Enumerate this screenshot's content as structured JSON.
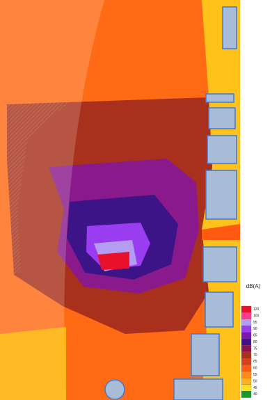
{
  "legend": {
    "title": "dB(A)",
    "items": [
      {
        "label": "120",
        "color": "#e8102a"
      },
      {
        "label": "100",
        "color": "#ff3a8a"
      },
      {
        "label": "95",
        "color": "#b49cf0"
      },
      {
        "label": "90",
        "color": "#9a3cf0"
      },
      {
        "label": "85",
        "color": "#7a18b0"
      },
      {
        "label": "80",
        "color": "#3c1488"
      },
      {
        "label": "75",
        "color": "#8a1050"
      },
      {
        "label": "70",
        "color": "#a8301c"
      },
      {
        "label": "65",
        "color": "#d8401a"
      },
      {
        "label": "60",
        "color": "#ff5a10"
      },
      {
        "label": "55",
        "color": "#ff8a1a"
      },
      {
        "label": "50",
        "color": "#ffb21a"
      },
      {
        "label": "45",
        "color": "#ffe01a"
      },
      {
        "label": "40",
        "color": "#1a9a2a"
      }
    ]
  }
}
